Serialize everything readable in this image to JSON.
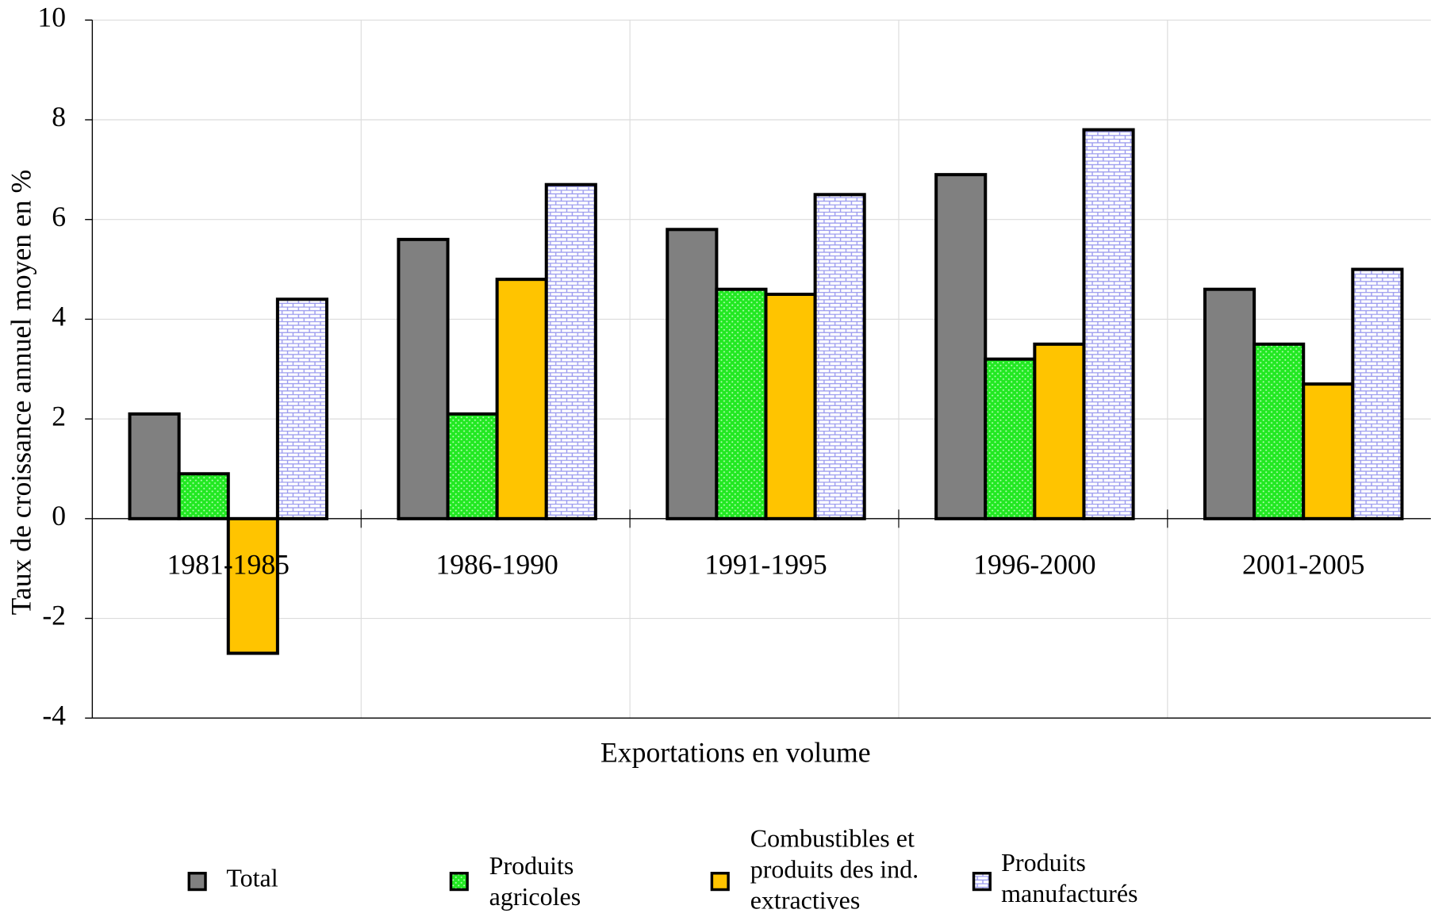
{
  "chart_data": {
    "type": "bar",
    "x_label": "Exportations en volume",
    "y_label": "Taux de croissance annuel moyen en %",
    "categories": [
      "1981-1985",
      "1986-1990",
      "1991-1995",
      "1996-2000",
      "2001-2005"
    ],
    "series": [
      {
        "name": "Total",
        "color": "#808080",
        "values": [
          2.1,
          5.6,
          5.8,
          6.9,
          4.6
        ]
      },
      {
        "name": "Produits agricoles",
        "color": "#22e822",
        "values": [
          0.9,
          2.1,
          4.6,
          3.2,
          3.5
        ]
      },
      {
        "name": "Combustibles et produits des ind. extractives",
        "color": "#ffc400",
        "values": [
          -2.7,
          4.8,
          4.5,
          3.5,
          2.7
        ]
      },
      {
        "name": "Produits manufacturés",
        "color": "#ccccff",
        "values": [
          4.4,
          6.7,
          6.5,
          7.8,
          5.0
        ]
      }
    ],
    "ylim": [
      -4,
      10
    ],
    "yticks": [
      -4,
      -2,
      0,
      2,
      4,
      6,
      8,
      10
    ],
    "grid": true,
    "legend": "bottom"
  }
}
